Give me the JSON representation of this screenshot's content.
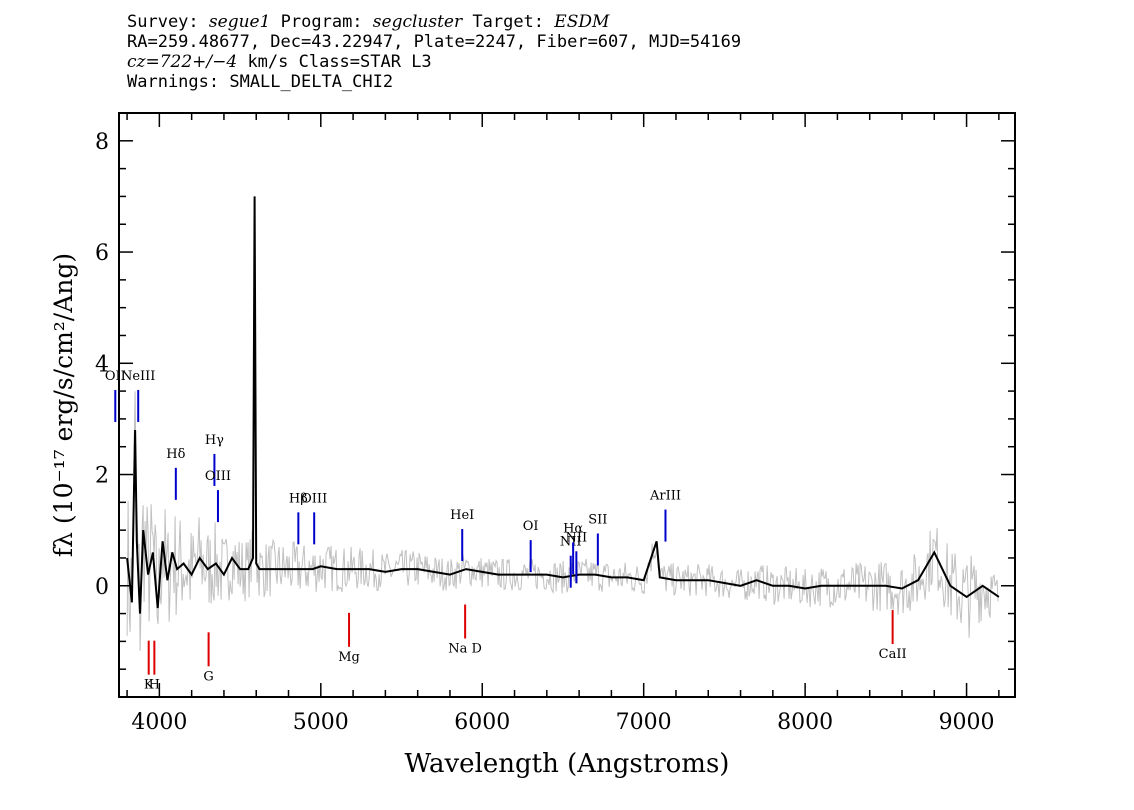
{
  "header": {
    "line1": {
      "survey_label": "Survey:",
      "survey": "segue1",
      "program_label": "Program:",
      "program": "segcluster",
      "target_label": "Target:",
      "target": "ESDM"
    },
    "line2": "RA=259.48677, Dec=43.22947, Plate=2247, Fiber=607, MJD=54169",
    "line3": {
      "cz": "cz=722+/−4",
      "unit_class": " km/s Class=STAR L3"
    },
    "line4": "Warnings: SMALL_DELTA_CHI2"
  },
  "chart_data": {
    "type": "line",
    "xlabel": "Wavelength (Angstroms)",
    "ylabel": "fλ (10⁻¹⁷ erg/s/cm²/Ang)",
    "xlim": [
      3750,
      9300
    ],
    "ylim": [
      -2.0,
      8.5
    ],
    "x_ticks": [
      4000,
      5000,
      6000,
      7000,
      8000,
      9000
    ],
    "y_ticks": [
      0,
      2,
      4,
      6,
      8
    ],
    "grid": false,
    "colors": {
      "flux": "#000000",
      "error": "#c0c0c0",
      "emission": "#0000cc",
      "absorption": "#dd0000"
    },
    "series": [
      {
        "role": "flux",
        "x": [
          3800,
          3830,
          3850,
          3860,
          3880,
          3900,
          3930,
          3960,
          3990,
          4020,
          4050,
          4080,
          4110,
          4150,
          4200,
          4250,
          4300,
          4350,
          4400,
          4450,
          4500,
          4550,
          4580,
          4590,
          4600,
          4620,
          4650,
          4700,
          4750,
          4800,
          4850,
          4900,
          4950,
          5000,
          5100,
          5200,
          5300,
          5400,
          5500,
          5600,
          5700,
          5800,
          5900,
          6000,
          6100,
          6200,
          6300,
          6400,
          6500,
          6600,
          6700,
          6800,
          6900,
          7000,
          7080,
          7100,
          7200,
          7300,
          7400,
          7500,
          7600,
          7700,
          7800,
          7900,
          8000,
          8100,
          8200,
          8300,
          8400,
          8500,
          8600,
          8700,
          8800,
          8900,
          9000,
          9100,
          9200
        ],
        "y": [
          0.5,
          -0.3,
          2.8,
          0.8,
          -0.5,
          1.0,
          0.2,
          0.6,
          -0.4,
          0.8,
          0.1,
          0.6,
          0.3,
          0.4,
          0.2,
          0.5,
          0.3,
          0.4,
          0.2,
          0.5,
          0.3,
          0.3,
          0.5,
          7.0,
          0.4,
          0.3,
          0.3,
          0.3,
          0.3,
          0.3,
          0.3,
          0.3,
          0.3,
          0.35,
          0.3,
          0.3,
          0.3,
          0.25,
          0.3,
          0.3,
          0.25,
          0.2,
          0.3,
          0.25,
          0.2,
          0.2,
          0.2,
          0.2,
          0.15,
          0.2,
          0.2,
          0.15,
          0.15,
          0.1,
          0.8,
          0.15,
          0.1,
          0.1,
          0.1,
          0.05,
          0.0,
          0.1,
          0.0,
          0.0,
          -0.05,
          0.0,
          0.0,
          0.0,
          0.0,
          0.0,
          -0.05,
          0.1,
          0.6,
          0.0,
          -0.2,
          0.0,
          -0.2
        ]
      },
      {
        "role": "error",
        "x": [
          3800,
          3850,
          3900,
          4000,
          4100,
          4200,
          4300,
          4400,
          4500,
          4600,
          4800,
          5000,
          5200,
          5400,
          5600,
          5800,
          6000,
          6200,
          6400,
          6600,
          6800,
          7000,
          7200,
          7400,
          7600,
          7800,
          8000,
          8200,
          8400,
          8600,
          8800,
          9000,
          9200
        ],
        "y": [
          1.4,
          1.5,
          1.3,
          1.1,
          1.0,
          0.9,
          0.8,
          0.7,
          0.6,
          0.55,
          0.5,
          0.45,
          0.4,
          0.35,
          0.35,
          0.3,
          0.3,
          0.3,
          0.3,
          0.3,
          0.3,
          0.3,
          0.3,
          0.3,
          0.3,
          0.35,
          0.35,
          0.4,
          0.45,
          0.5,
          0.6,
          0.8,
          0.4
        ]
      }
    ],
    "lines": [
      {
        "label": "OII",
        "x": 3727,
        "y": 3.7,
        "kind": "emission"
      },
      {
        "label": "NeIII",
        "x": 3869,
        "y": 3.7,
        "kind": "emission"
      },
      {
        "label": "Hδ",
        "x": 4102,
        "y": 2.3,
        "kind": "emission"
      },
      {
        "label": "Hγ",
        "x": 4341,
        "y": 2.55,
        "kind": "emission"
      },
      {
        "label": "OIII",
        "x": 4363,
        "y": 1.9,
        "kind": "emission"
      },
      {
        "label": "Hβ",
        "x": 4861,
        "y": 1.5,
        "kind": "emission"
      },
      {
        "label": "OIII",
        "x": 4959,
        "y": 1.5,
        "kind": "emission"
      },
      {
        "label": "HeI",
        "x": 5876,
        "y": 1.2,
        "kind": "emission"
      },
      {
        "label": "OI",
        "x": 6300,
        "y": 1.0,
        "kind": "emission"
      },
      {
        "label": "NII",
        "x": 6548,
        "y": 0.72,
        "kind": "emission"
      },
      {
        "label": "Hα",
        "x": 6563,
        "y": 0.96,
        "kind": "emission"
      },
      {
        "label": "NII",
        "x": 6583,
        "y": 0.8,
        "kind": "emission"
      },
      {
        "label": "SII",
        "x": 6716,
        "y": 1.12,
        "kind": "emission"
      },
      {
        "label": "ArIII",
        "x": 7135,
        "y": 1.55,
        "kind": "emission"
      },
      {
        "label": "K",
        "x": 3934,
        "y": -1.85,
        "kind": "absorption"
      },
      {
        "label": "H",
        "x": 3969,
        "y": -1.85,
        "kind": "absorption"
      },
      {
        "label": "G",
        "x": 4305,
        "y": -1.7,
        "kind": "absorption"
      },
      {
        "label": "Mg",
        "x": 5175,
        "y": -1.35,
        "kind": "absorption"
      },
      {
        "label": "Na D",
        "x": 5894,
        "y": -1.2,
        "kind": "absorption"
      },
      {
        "label": "CaII",
        "x": 8542,
        "y": -1.3,
        "kind": "absorption"
      }
    ]
  }
}
